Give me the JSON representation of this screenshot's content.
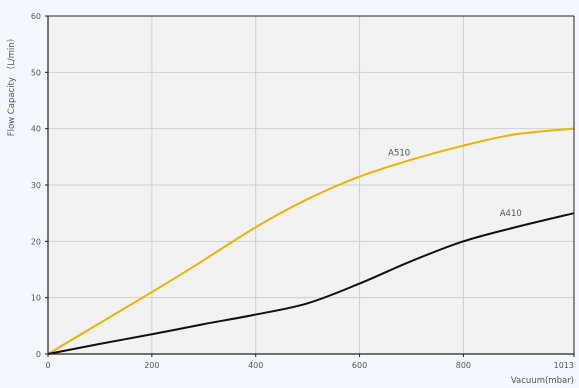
{
  "chart_data": {
    "type": "line",
    "title": "",
    "xlabel": "Vacuum(mbar)",
    "ylabel": "Flow Capacity （L/min）",
    "xlim": [
      0,
      1013
    ],
    "ylim": [
      0,
      60
    ],
    "x_ticks": [
      0,
      200,
      400,
      600,
      800,
      1013
    ],
    "y_ticks": [
      0,
      10,
      20,
      30,
      40,
      50,
      60
    ],
    "grid": true,
    "legend": "none (series labeled inline)",
    "colors": {
      "background": "#f2f8fd",
      "plot_area": "#f2f2f2",
      "grid": "#cfcfcf",
      "axis": "#222222"
    },
    "series": [
      {
        "name": "A510",
        "color": "#f0b400",
        "x": [
          0,
          100,
          200,
          280,
          400,
          500,
          600,
          700,
          800,
          900,
          1013
        ],
        "y": [
          0,
          5.5,
          11,
          15.5,
          22.5,
          27.5,
          31.5,
          34.5,
          37,
          39,
          40
        ]
      },
      {
        "name": "A410",
        "color": "#111111",
        "x": [
          0,
          100,
          200,
          300,
          400,
          500,
          600,
          700,
          800,
          900,
          1013
        ],
        "y": [
          0,
          1.8,
          3.5,
          5.3,
          7,
          9,
          12.5,
          16.5,
          20,
          22.5,
          25
        ]
      }
    ],
    "annotations": [
      {
        "text": "A510",
        "x": 655,
        "y": 35.2
      },
      {
        "text": "A410",
        "x": 870,
        "y": 24.5
      }
    ]
  }
}
